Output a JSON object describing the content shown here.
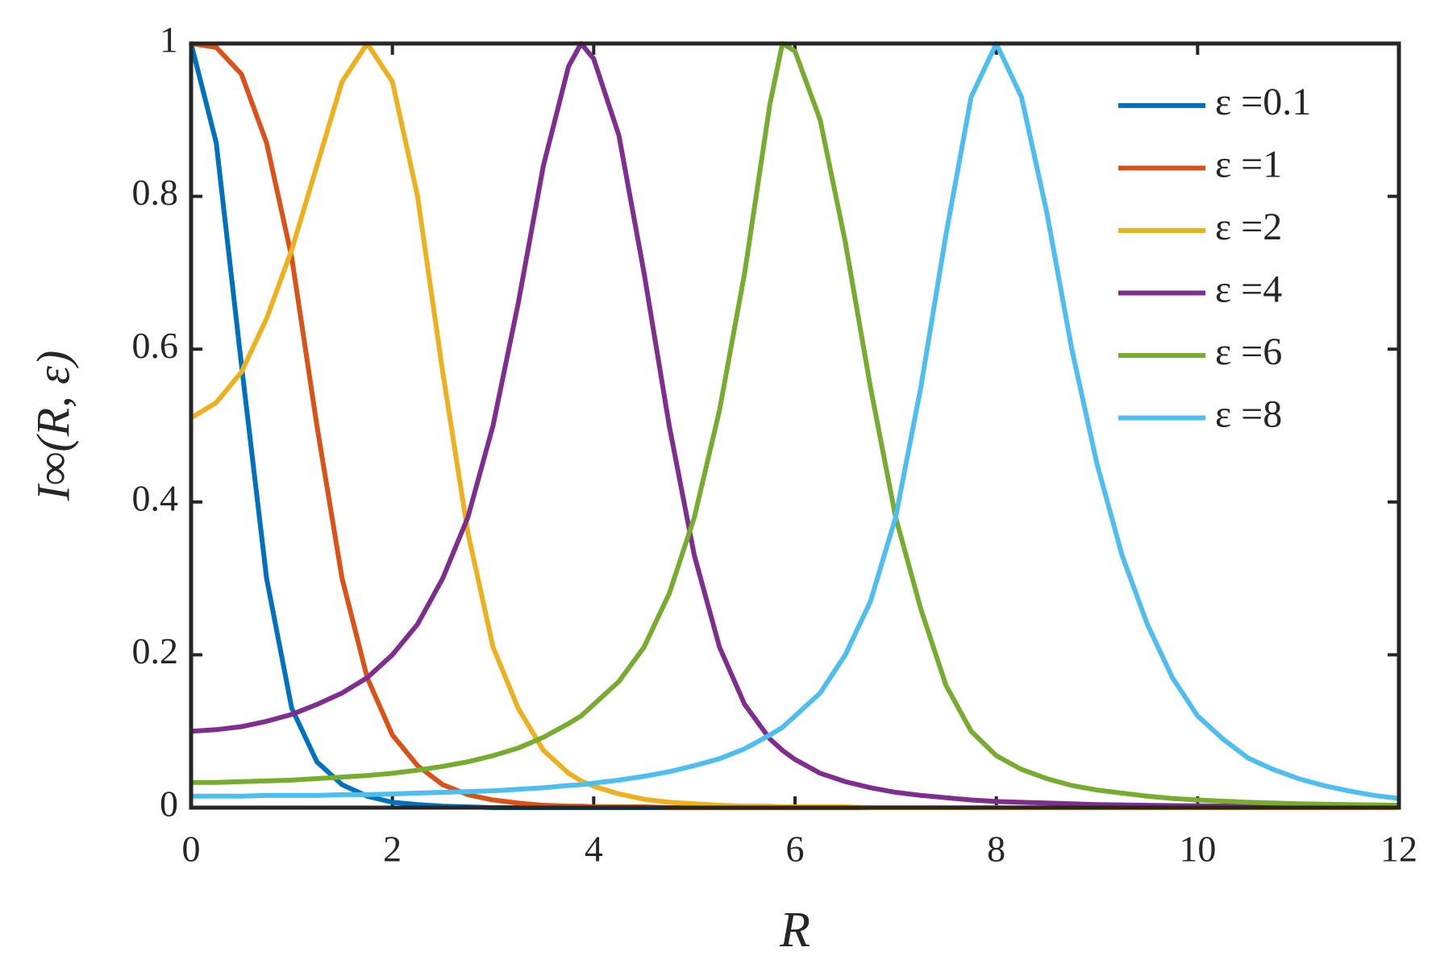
{
  "chart_data": {
    "type": "line",
    "x_label": "R",
    "y_label": "I∞(R, ε)",
    "x": [
      0,
      0.25,
      0.5,
      0.75,
      1,
      1.25,
      1.5,
      1.75,
      2,
      2.25,
      2.5,
      2.75,
      3,
      3.25,
      3.5,
      3.75,
      3.875,
      4,
      4.25,
      4.5,
      4.75,
      5,
      5.25,
      5.5,
      5.75,
      5.875,
      6,
      6.25,
      6.5,
      6.75,
      7,
      7.25,
      7.5,
      7.75,
      8,
      8.25,
      8.5,
      8.75,
      9,
      9.25,
      9.5,
      9.75,
      10,
      10.25,
      10.5,
      10.75,
      11,
      11.25,
      11.5,
      11.75,
      12
    ],
    "series": [
      {
        "name": "ε =0.1",
        "color": "#0072BD",
        "values": [
          1,
          0.87,
          0.58,
          0.3,
          0.13,
          0.06,
          0.03,
          0.015,
          0.007,
          0.004,
          0.002,
          0.001,
          0,
          0,
          0,
          0,
          0,
          0,
          0,
          0,
          0,
          0,
          0,
          0,
          0,
          0,
          0,
          0,
          0,
          0,
          0,
          0,
          0,
          0,
          0,
          0,
          0,
          0,
          0,
          0,
          0,
          0,
          0,
          0,
          0,
          0,
          0,
          0,
          0,
          0,
          0
        ]
      },
      {
        "name": "ε =1",
        "color": "#D95319",
        "values": [
          1,
          0.995,
          0.96,
          0.87,
          0.72,
          0.5,
          0.3,
          0.17,
          0.095,
          0.055,
          0.03,
          0.017,
          0.01,
          0.006,
          0.003,
          0.002,
          0.002,
          0.001,
          0.001,
          0.001,
          0,
          0,
          0,
          0,
          0,
          0,
          0,
          0,
          0,
          0,
          0,
          0,
          0,
          0,
          0,
          0,
          0,
          0,
          0,
          0,
          0,
          0,
          0,
          0,
          0,
          0,
          0,
          0,
          0,
          0,
          0
        ]
      },
      {
        "name": "ε =2",
        "color": "#EDB120",
        "values": [
          0.51,
          0.53,
          0.57,
          0.64,
          0.73,
          0.84,
          0.95,
          1,
          0.95,
          0.8,
          0.57,
          0.36,
          0.21,
          0.13,
          0.075,
          0.045,
          0.035,
          0.028,
          0.018,
          0.011,
          0.007,
          0.005,
          0.003,
          0.002,
          0.002,
          0.001,
          0.001,
          0.001,
          0.001,
          0,
          0,
          0,
          0,
          0,
          0,
          0,
          0,
          0,
          0,
          0,
          0,
          0,
          0,
          0,
          0,
          0,
          0,
          0,
          0,
          0,
          0
        ]
      },
      {
        "name": "ε =4",
        "color": "#7E2F8E",
        "values": [
          0.1,
          0.102,
          0.106,
          0.113,
          0.122,
          0.135,
          0.15,
          0.17,
          0.2,
          0.24,
          0.3,
          0.38,
          0.5,
          0.66,
          0.84,
          0.97,
          1,
          0.98,
          0.88,
          0.7,
          0.5,
          0.33,
          0.21,
          0.135,
          0.09,
          0.075,
          0.063,
          0.045,
          0.034,
          0.026,
          0.02,
          0.016,
          0.013,
          0.01,
          0.008,
          0.007,
          0.006,
          0.005,
          0.004,
          0.0035,
          0.003,
          0.0027,
          0.0024,
          0.0021,
          0.0019,
          0.0017,
          0.0015,
          0.0014,
          0.0013,
          0.0012,
          0.0011
        ]
      },
      {
        "name": "ε =6",
        "color": "#77AC30",
        "values": [
          0.033,
          0.033,
          0.034,
          0.035,
          0.036,
          0.038,
          0.04,
          0.042,
          0.045,
          0.049,
          0.054,
          0.06,
          0.068,
          0.078,
          0.092,
          0.11,
          0.12,
          0.135,
          0.165,
          0.21,
          0.28,
          0.38,
          0.52,
          0.7,
          0.92,
          1,
          0.99,
          0.9,
          0.74,
          0.55,
          0.38,
          0.26,
          0.16,
          0.1,
          0.068,
          0.05,
          0.038,
          0.029,
          0.023,
          0.019,
          0.015,
          0.012,
          0.01,
          0.0085,
          0.007,
          0.006,
          0.005,
          0.0045,
          0.004,
          0.0035,
          0.003
        ]
      },
      {
        "name": "ε =8",
        "color": "#4DBEEE",
        "values": [
          0.015,
          0.015,
          0.015,
          0.016,
          0.016,
          0.016,
          0.017,
          0.017,
          0.018,
          0.019,
          0.02,
          0.021,
          0.022,
          0.024,
          0.026,
          0.029,
          0.03,
          0.032,
          0.036,
          0.041,
          0.047,
          0.055,
          0.064,
          0.077,
          0.095,
          0.105,
          0.12,
          0.15,
          0.2,
          0.27,
          0.38,
          0.55,
          0.75,
          0.93,
          1,
          0.93,
          0.78,
          0.6,
          0.45,
          0.33,
          0.24,
          0.17,
          0.12,
          0.09,
          0.065,
          0.05,
          0.038,
          0.029,
          0.022,
          0.016,
          0.012
        ]
      }
    ],
    "xlim": [
      0,
      12
    ],
    "xticks": [
      0,
      2,
      4,
      6,
      8,
      10,
      12
    ],
    "ylim": [
      0,
      1
    ],
    "yticks": [
      0,
      0.2,
      0.4,
      0.6,
      0.8,
      1
    ],
    "legend": "upper-right"
  }
}
